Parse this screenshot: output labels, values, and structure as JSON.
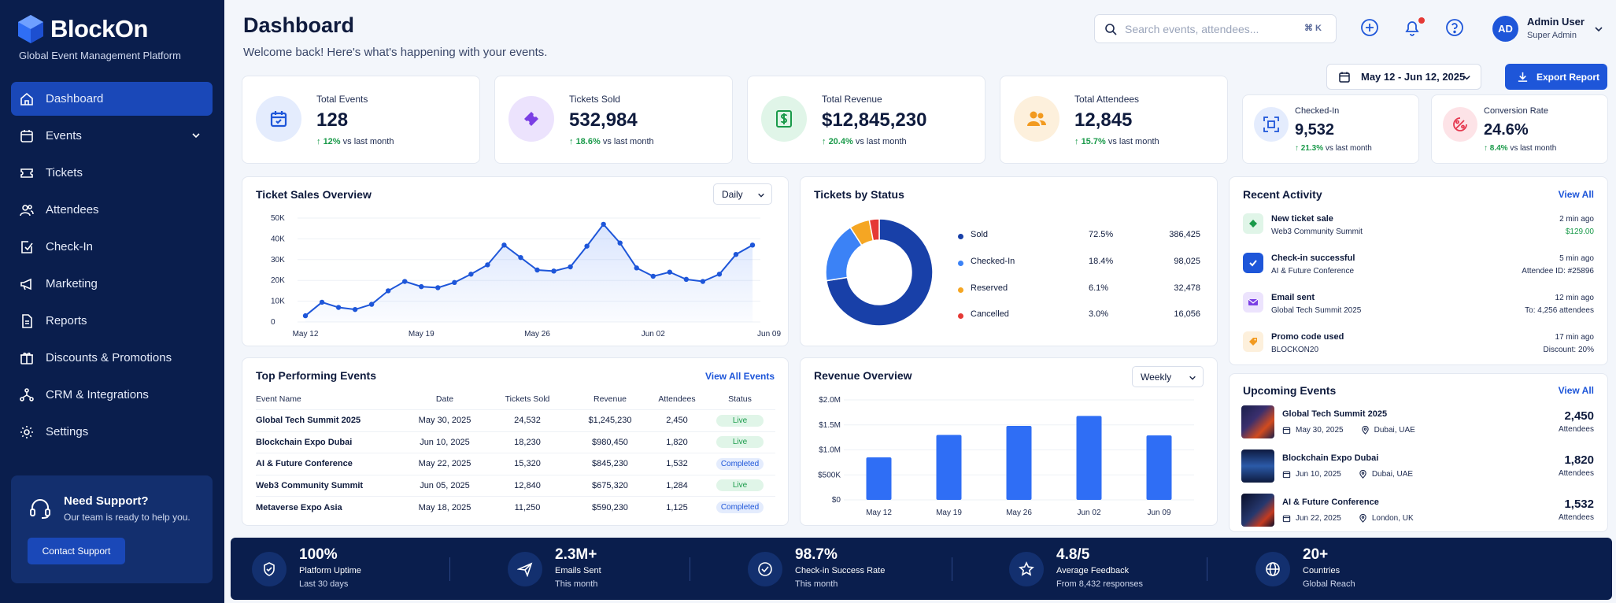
{
  "brand": {
    "name": "BlockOn",
    "tagline": "Global Event Management Platform"
  },
  "nav": [
    {
      "label": "Dashboard",
      "icon": "home-icon"
    },
    {
      "label": "Events",
      "icon": "calendar-icon"
    },
    {
      "label": "Tickets",
      "icon": "ticket-icon"
    },
    {
      "label": "Attendees",
      "icon": "users-icon"
    },
    {
      "label": "Check-In",
      "icon": "checkin-icon"
    },
    {
      "label": "Marketing",
      "icon": "megaphone-icon"
    },
    {
      "label": "Reports",
      "icon": "report-icon"
    },
    {
      "label": "Discounts & Promotions",
      "icon": "discount-icon"
    },
    {
      "label": "CRM & Integrations",
      "icon": "integrations-icon"
    },
    {
      "label": "Settings",
      "icon": "gear-icon"
    }
  ],
  "support": {
    "title": "Need Support?",
    "subtitle": "Our team is ready to help you.",
    "button": "Contact Support"
  },
  "header": {
    "title": "Dashboard",
    "subtitle": "Welcome back! Here's what's happening with your events.",
    "search_placeholder": "Search events, attendees...",
    "search_shortcut": "⌘ K",
    "user_initials": "AD",
    "user_name": "Admin User",
    "user_role": "Super Admin"
  },
  "toolbar": {
    "date_range": "May 12 - Jun 12, 2025",
    "export_label": "Export Report"
  },
  "stats": [
    {
      "label": "Total Events",
      "value": "128",
      "change": "12%",
      "suffix": "vs last month",
      "color": "#1e56d9",
      "bg": "#e4ecfd"
    },
    {
      "label": "Tickets Sold",
      "value": "532,984",
      "change": "18.6%",
      "suffix": "vs last month",
      "color": "#7b3fe4",
      "bg": "#ece3fd"
    },
    {
      "label": "Total Revenue",
      "value": "$12,845,230",
      "change": "20.4%",
      "suffix": "vs last month",
      "color": "#1a9a4a",
      "bg": "#e0f5e8"
    },
    {
      "label": "Total Attendees",
      "value": "12,845",
      "change": "15.7%",
      "suffix": "vs last month",
      "color": "#f29a1f",
      "bg": "#fdf0dc"
    }
  ],
  "small_stats": [
    {
      "label": "Checked-In",
      "value": "9,532",
      "change": "21.3%",
      "suffix": "vs last month",
      "color": "#1e56d9",
      "bg": "#e4ecfd"
    },
    {
      "label": "Conversion Rate",
      "value": "24.6%",
      "change": "8.4%",
      "suffix": "vs last month",
      "color": "#e53950",
      "bg": "#fde3e7"
    }
  ],
  "ticket_sales": {
    "title": "Ticket Sales Overview",
    "period": "Daily"
  },
  "tickets_status": {
    "title": "Tickets by Status"
  },
  "top_events": {
    "title": "Top Performing Events",
    "view_all": "View All Events",
    "columns": [
      "Event Name",
      "Date",
      "Tickets Sold",
      "Revenue",
      "Attendees",
      "Status"
    ],
    "rows": [
      [
        "Global Tech Summit 2025",
        "May 30, 2025",
        "24,532",
        "$1,245,230",
        "2,450",
        "Live"
      ],
      [
        "Blockchain Expo Dubai",
        "Jun 10, 2025",
        "18,230",
        "$980,450",
        "1,820",
        "Live"
      ],
      [
        "AI & Future Conference",
        "May 22, 2025",
        "15,320",
        "$845,230",
        "1,532",
        "Completed"
      ],
      [
        "Web3 Community Summit",
        "Jun 05, 2025",
        "12,840",
        "$675,320",
        "1,284",
        "Live"
      ],
      [
        "Metaverse Expo Asia",
        "May 18, 2025",
        "11,250",
        "$590,230",
        "1,125",
        "Completed"
      ]
    ]
  },
  "revenue": {
    "title": "Revenue Overview",
    "period": "Weekly"
  },
  "activity": {
    "title": "Recent Activity",
    "view_all": "View All",
    "items": [
      {
        "title": "New ticket sale",
        "sub": "Web3 Community Summit",
        "time": "2 min ago",
        "detail": "$129.00",
        "icon": "ticket-icon",
        "color": "#1a9a4a",
        "bg": "#e0f5e8"
      },
      {
        "title": "Check-in successful",
        "sub": "AI & Future Conference",
        "time": "5 min ago",
        "detail": "Attendee ID: #25896",
        "icon": "check-icon",
        "color": "#1e56d9",
        "bg": "#e4ecfd"
      },
      {
        "title": "Email sent",
        "sub": "Global Tech Summit 2025",
        "time": "12 min ago",
        "detail": "To: 4,256 attendees",
        "icon": "mail-icon",
        "color": "#7b3fe4",
        "bg": "#ece3fd"
      },
      {
        "title": "Promo code used",
        "sub": "BLOCKON20",
        "time": "17 min ago",
        "detail": "Discount: 20%",
        "icon": "tag-icon",
        "color": "#f29a1f",
        "bg": "#fdf0dc"
      }
    ]
  },
  "upcoming": {
    "title": "Upcoming Events",
    "view_all": "View All",
    "items": [
      {
        "title": "Global Tech Summit 2025",
        "date": "May 30, 2025",
        "location": "Dubai, UAE",
        "count": "2,450",
        "unit": "Attendees"
      },
      {
        "title": "Blockchain Expo Dubai",
        "date": "Jun 10, 2025",
        "location": "Dubai, UAE",
        "count": "1,820",
        "unit": "Attendees"
      },
      {
        "title": "AI & Future Conference",
        "date": "Jun 22, 2025",
        "location": "London, UK",
        "count": "1,532",
        "unit": "Attendees"
      }
    ]
  },
  "footer": [
    {
      "value": "100%",
      "label": "Platform Uptime",
      "sub": "Last 30 days",
      "icon": "shield-icon"
    },
    {
      "value": "2.3M+",
      "label": "Emails Sent",
      "sub": "This month",
      "icon": "send-icon"
    },
    {
      "value": "98.7%",
      "label": "Check-in Success Rate",
      "sub": "This month",
      "icon": "check-circle-icon"
    },
    {
      "value": "4.8/5",
      "label": "Average Feedback",
      "sub": "From 8,432 responses",
      "icon": "star-icon"
    },
    {
      "value": "20+",
      "label": "Countries",
      "sub": "Global Reach",
      "icon": "globe-icon"
    }
  ],
  "chart_data": [
    {
      "type": "line",
      "x_ticks": [
        "May 12",
        "May 19",
        "May 26",
        "Jun 02",
        "Jun 09"
      ],
      "y_ticks": [
        "0",
        "10K",
        "20K",
        "30K",
        "40K",
        "50K"
      ],
      "ylim": [
        0,
        50000
      ],
      "values": [
        3000,
        9500,
        7000,
        6000,
        8500,
        15000,
        19500,
        17000,
        16500,
        19000,
        23000,
        27500,
        37000,
        31000,
        25000,
        24500,
        26500,
        36500,
        47000,
        38000,
        26000,
        22000,
        24000,
        20500,
        19500,
        23000,
        32500,
        37000
      ]
    },
    {
      "type": "pie",
      "series": [
        {
          "name": "Sold",
          "pct": "72.5%",
          "count": "386,425",
          "value": 72.5,
          "color": "#1840a8"
        },
        {
          "name": "Checked-In",
          "pct": "18.4%",
          "count": "98,025",
          "value": 18.4,
          "color": "#3b82f6"
        },
        {
          "name": "Reserved",
          "pct": "6.1%",
          "count": "32,478",
          "value": 6.1,
          "color": "#f5a623"
        },
        {
          "name": "Cancelled",
          "pct": "3.0%",
          "count": "16,056",
          "value": 3.0,
          "color": "#e53935"
        }
      ]
    },
    {
      "type": "bar",
      "categories": [
        "May 12",
        "May 19",
        "May 26",
        "Jun 02",
        "Jun 09"
      ],
      "y_ticks": [
        "$0",
        "$500K",
        "$1.0M",
        "$1.5M",
        "$2.0M"
      ],
      "ylim": [
        0,
        2000000
      ],
      "values": [
        850000,
        1300000,
        1480000,
        1680000,
        1290000
      ]
    }
  ]
}
